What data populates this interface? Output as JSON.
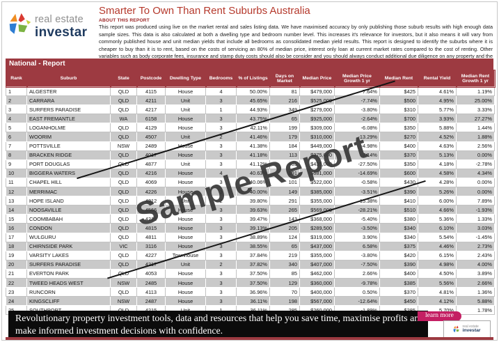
{
  "logo": {
    "line1": "real estate",
    "line2": "investar"
  },
  "header": {
    "title": "Smarter To Own Than Rent Suburbs Australia",
    "about_label": "ABOUT THIS REPORT",
    "about_text": "This report was produced using live on the market rental and sales listing data. We have maximised accuracy by only publishing those suburb results with high enough data sample sizes. This data is also calculated at both a dwelling type and bedroom number level. This increases it's relevance for investors, but it also means it will vary from commonly published house and unit median yields that include all bedrooms as consolidated median yield results. This report is designed to identify the suburbs where it is cheaper to buy than it is to rent, based on the costs of servicing an 80% of median price, interest only loan at current market rates compared to the cost of renting.   Other variables such as body corporate fees, insurance and stamp duty costs should also be consider and you should always conduct additional due diligence on any property and the suburb it is located in to ensure it meets your investment criteria."
  },
  "section_title": "National - Report",
  "table": {
    "columns": [
      "Rank",
      "Suburb",
      "State",
      "Postcode",
      "Dwelling Type",
      "Bedrooms",
      "% of Listings",
      "Days on Market",
      "Median Price",
      "Median Price Growth 1 yr",
      "Median Rent",
      "Rental Yield",
      "Median Rent Growth 1 yr"
    ],
    "rows": [
      [
        "1",
        "ALGESTER",
        "QLD",
        "4115",
        "House",
        "4",
        "50.00%",
        "81",
        "$479,000",
        "7.64%",
        "$425",
        "4.61%",
        "1.19%"
      ],
      [
        "2",
        "CARRARA",
        "QLD",
        "4211",
        "Unit",
        "3",
        "45.65%",
        "216",
        "$525,000",
        "-7.74%",
        "$500",
        "4.95%",
        "25.00%"
      ],
      [
        "3",
        "SURFERS PARADISE",
        "QLD",
        "4217",
        "Unit",
        "1",
        "44.93%",
        "349",
        "$279,000",
        "-3.80%",
        "$310",
        "5.77%",
        "3.33%"
      ],
      [
        "4",
        "EAST FREMANTLE",
        "WA",
        "6158",
        "House",
        "3",
        "43.75%",
        "65",
        "$925,000",
        "-2.64%",
        "$700",
        "3.93%",
        "27.27%"
      ],
      [
        "5",
        "LOGANHOLME",
        "QLD",
        "4129",
        "House",
        "3",
        "42.11%",
        "199",
        "$309,000",
        "-6.08%",
        "$350",
        "5.88%",
        "1.44%"
      ],
      [
        "6",
        "WOORIM",
        "QLD",
        "4507",
        "Unit",
        "2",
        "41.46%",
        "179",
        "$310,000",
        "-13.29%",
        "$270",
        "4.52%",
        "1.88%"
      ],
      [
        "7",
        "POTTSVILLE",
        "NSW",
        "2489",
        "House",
        "3",
        "41.38%",
        "184",
        "$449,000",
        "-4.98%",
        "$400",
        "4.63%",
        "2.56%"
      ],
      [
        "8",
        "BRACKEN RIDGE",
        "QLD",
        "4017",
        "House",
        "3",
        "41.18%",
        "113",
        "$375,000",
        "7.14%",
        "$370",
        "5.13%",
        "0.00%"
      ],
      [
        "9",
        "PORT DOUGLAS",
        "QLD",
        "4877",
        "Unit",
        "3",
        "41.12%",
        "485",
        "$435,000",
        "-27.50%",
        "$350",
        "4.18%",
        "-2.78%"
      ],
      [
        "10",
        "BIGGERA WATERS",
        "QLD",
        "4216",
        "House",
        "4",
        "40.63%",
        "191",
        "$681,000",
        "-14.69%",
        "$600",
        "4.58%",
        "4.34%"
      ],
      [
        "11",
        "CHAPEL HILL",
        "QLD",
        "4069",
        "House",
        "3",
        "40.06%",
        "101",
        "$522,000",
        "-0.58%",
        "$430",
        "4.28%",
        "0.00%"
      ],
      [
        "12",
        "MERRIMAC",
        "QLD",
        "4226",
        "House",
        "3",
        "40.00%",
        "149",
        "$385,000",
        "-3.51%",
        "$390",
        "5.26%",
        "0.00%"
      ],
      [
        "13",
        "HOPE ISLAND",
        "QLD",
        "4212",
        "Unit",
        "2",
        "39.80%",
        "291",
        "$355,000",
        "-15.38%",
        "$410",
        "6.00%",
        "7.89%"
      ],
      [
        "14",
        "NOOSAVILLE",
        "QLD",
        "4566",
        "House",
        "3",
        "39.63%",
        "265",
        "$569,000",
        "-28.21%",
        "$510",
        "4.66%",
        "-1.93%"
      ],
      [
        "15",
        "COOMBABAH",
        "QLD",
        "4216",
        "House",
        "3",
        "39.47%",
        "143",
        "$368,000",
        "-5.40%",
        "$380",
        "5.36%",
        "1.33%"
      ],
      [
        "16",
        "CONDON",
        "QLD",
        "4815",
        "House",
        "3",
        "39.13%",
        "205",
        "$289,500",
        "-3.50%",
        "$340",
        "6.10%",
        "3.03%"
      ],
      [
        "17",
        "WULGURU",
        "QLD",
        "4811",
        "House",
        "3",
        "38.89%",
        "124",
        "$319,000",
        "3.90%",
        "$340",
        "5.54%",
        "-1.45%"
      ],
      [
        "18",
        "CHIRNSIDE PARK",
        "VIC",
        "3116",
        "House",
        "3",
        "38.55%",
        "65",
        "$437,000",
        "6.58%",
        "$375",
        "4.46%",
        "2.73%"
      ],
      [
        "19",
        "VARSITY LAKES",
        "QLD",
        "4227",
        "Townhouse",
        "3",
        "37.84%",
        "219",
        "$355,000",
        "-3.80%",
        "$420",
        "6.15%",
        "2.43%"
      ],
      [
        "20",
        "SURFERS PARADISE",
        "QLD",
        "4217",
        "Unit",
        "2",
        "37.82%",
        "340",
        "$407,000",
        "-7.50%",
        "$390",
        "4.98%",
        "4.00%"
      ],
      [
        "21",
        "EVERTON PARK",
        "QLD",
        "4053",
        "House",
        "3",
        "37.50%",
        "85",
        "$462,000",
        "2.66%",
        "$400",
        "4.50%",
        "3.89%"
      ],
      [
        "22",
        "TWEED HEADS WEST",
        "NSW",
        "2485",
        "House",
        "3",
        "37.50%",
        "129",
        "$360,000",
        "-9.78%",
        "$385",
        "5.56%",
        "2.66%"
      ],
      [
        "23",
        "RUNCORN",
        "QLD",
        "4113",
        "House",
        "3",
        "36.96%",
        "70",
        "$400,000",
        "0.50%",
        "$370",
        "4.81%",
        "1.36%"
      ],
      [
        "24",
        "KINGSCLIFF",
        "NSW",
        "2487",
        "House",
        "3",
        "36.11%",
        "198",
        "$567,000",
        "-12.64%",
        "$450",
        "4.12%",
        "5.88%"
      ],
      [
        "25",
        "SOUTHPORT",
        "QLD",
        "4215",
        "Unit",
        "1",
        "36.11%",
        "285",
        "$260,000",
        "-1.89%",
        "$285",
        "5.70%",
        "1.78%"
      ]
    ]
  },
  "watermark": "Sample Report",
  "footer": {
    "message": "Revolutionary property investment tools, data and resources that help you save time, maximise profits and make informed investment decisions with confidence.",
    "learn_more_label": "learn more",
    "mini_logo_line1": "real estate",
    "mini_logo_line2": "investar"
  },
  "colors": {
    "maroon": "#9d3a41",
    "title_red": "#b5392c",
    "row_alt_gray": "#c9c9c9",
    "footer_black": "#0b0b0b",
    "learn_more_pink": "#c41f63",
    "logo_navy": "#1e3a5f"
  }
}
